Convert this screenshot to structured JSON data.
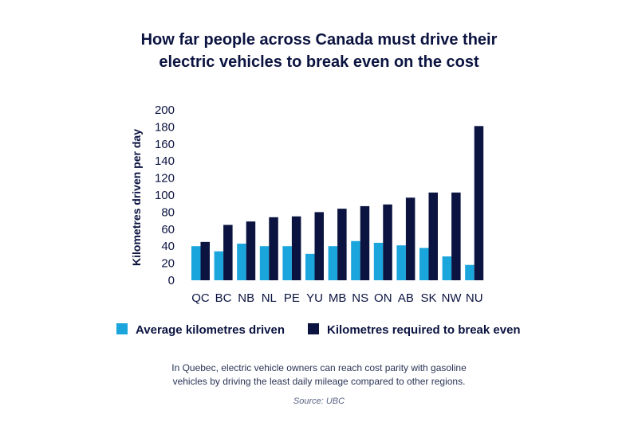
{
  "chart_data": {
    "type": "bar",
    "title_lines": [
      "How far people across Canada must drive their",
      "electric vehicles to break even on the cost"
    ],
    "xlabel": "",
    "ylabel": "Kilometres driven per day",
    "ylim": [
      0,
      200
    ],
    "yticks": [
      0,
      20,
      40,
      60,
      80,
      100,
      120,
      140,
      160,
      180,
      200
    ],
    "grid": false,
    "legend_position": "bottom",
    "categories": [
      "QC",
      "BC",
      "NB",
      "NL",
      "PE",
      "YU",
      "MB",
      "NS",
      "ON",
      "AB",
      "SK",
      "NW",
      "NU"
    ],
    "series": [
      {
        "name": "Average kilometres driven",
        "color": "#1aa6dd",
        "values": [
          40,
          34,
          43,
          40,
          40,
          31,
          40,
          46,
          44,
          41,
          38,
          28,
          18
        ]
      },
      {
        "name": "Kilometres required to break even",
        "color": "#0b1340",
        "values": [
          45,
          65,
          69,
          74,
          75,
          80,
          84,
          87,
          89,
          97,
          103,
          103,
          181
        ]
      }
    ],
    "caption_lines": [
      "In Quebec, electric vehicle owners can reach cost parity with gasoline",
      "vehicles by driving the least daily mileage compared to other regions."
    ],
    "source": "Source: UBC"
  }
}
